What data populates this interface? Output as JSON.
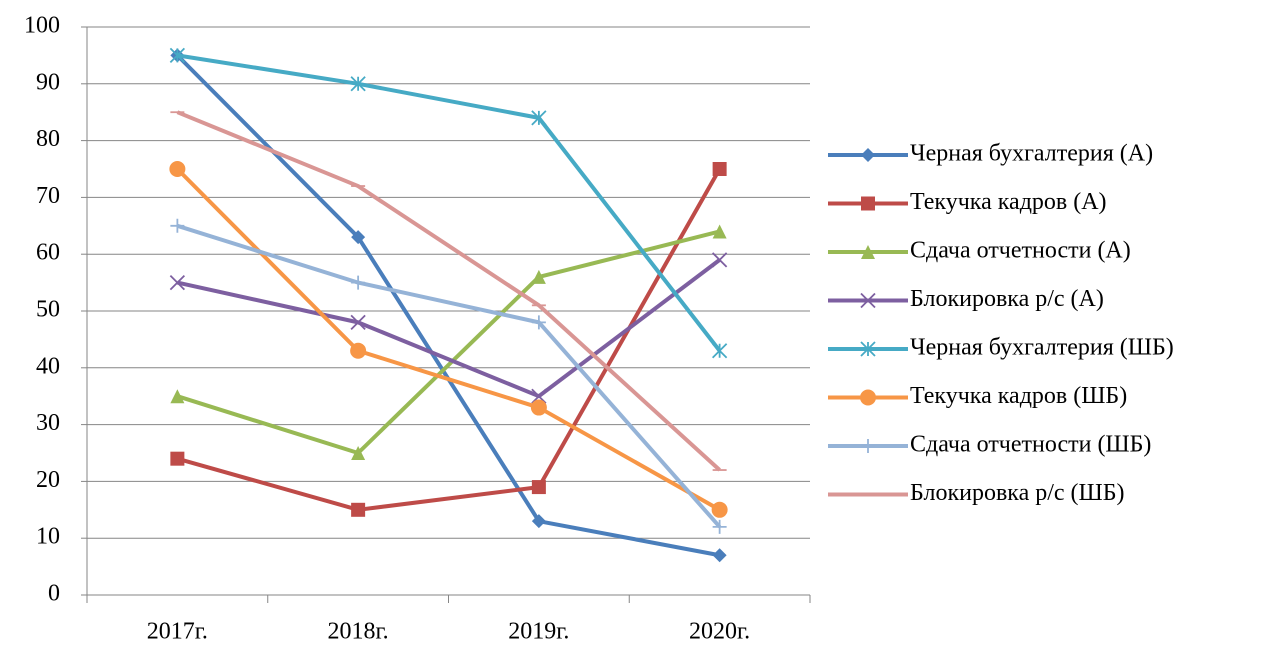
{
  "chart_data": {
    "type": "line",
    "categories": [
      "2017г.",
      "2018г.",
      "2019г.",
      "2020г."
    ],
    "series": [
      {
        "name": "Черная бухгалтерия (А)",
        "color": "#4a7ebb",
        "marker": "diamond",
        "values": [
          95,
          63,
          13,
          7
        ]
      },
      {
        "name": "Текучка кадров (А)",
        "color": "#be4b48",
        "marker": "square",
        "values": [
          24,
          15,
          19,
          75
        ]
      },
      {
        "name": "Сдача отчетности (А)",
        "color": "#98b954",
        "marker": "triangle",
        "values": [
          35,
          25,
          56,
          64
        ]
      },
      {
        "name": "Блокировка р/с (А)",
        "color": "#7d5fa0",
        "marker": "x",
        "values": [
          55,
          48,
          35,
          59
        ]
      },
      {
        "name": "Черная бухгалтерия (ШБ)",
        "color": "#46aac5",
        "marker": "star",
        "values": [
          95,
          90,
          84,
          43
        ]
      },
      {
        "name": "Текучка кадров (ШБ)",
        "color": "#f79646",
        "marker": "circle",
        "values": [
          75,
          43,
          33,
          15
        ]
      },
      {
        "name": "Сдача отчетности (ШБ)",
        "color": "#95b3d7",
        "marker": "plus",
        "values": [
          65,
          55,
          48,
          12
        ]
      },
      {
        "name": "Блокировка р/с (ШБ)",
        "color": "#d99694",
        "marker": "dash",
        "values": [
          85,
          72,
          51,
          22
        ]
      }
    ],
    "ylim": [
      0,
      100
    ],
    "yticks": [
      0,
      10,
      20,
      30,
      40,
      50,
      60,
      70,
      80,
      90,
      100
    ],
    "grid": true,
    "legend": "right"
  }
}
